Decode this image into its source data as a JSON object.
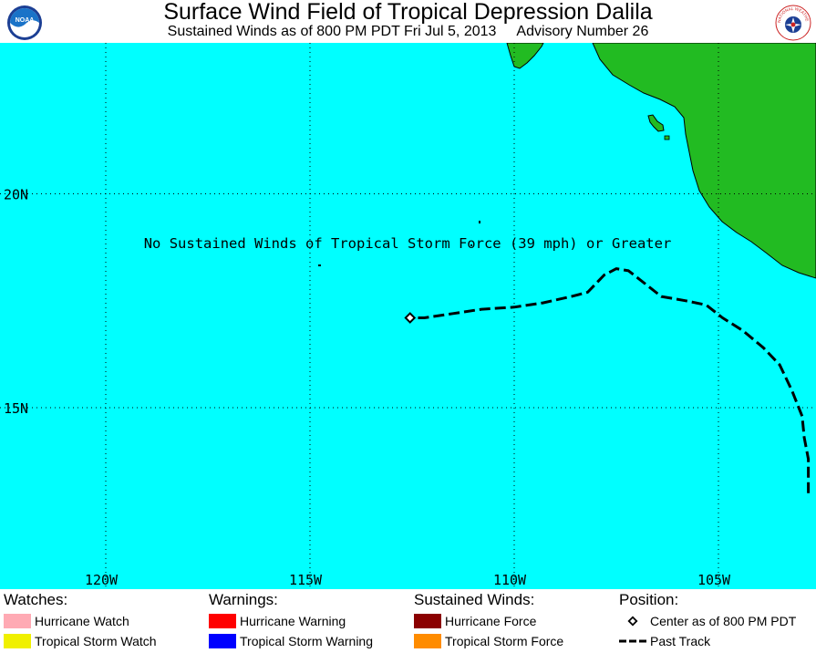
{
  "header": {
    "title": "Surface Wind Field of Tropical Depression Dalila",
    "subtitle_left": "Sustained Winds as of 800 PM PDT Fri Jul 5, 2013",
    "subtitle_right": "Advisory Number 26",
    "left_logo": "NOAA",
    "right_logo": "NATIONAL WEATHER SERVICE"
  },
  "map": {
    "ocean_color": "#00FFFF",
    "land_color": "#22BB22",
    "message": "No Sustained Winds of Tropical Storm Force (39 mph) or Greater",
    "lat_labels": [
      "20N",
      "15N"
    ],
    "lon_labels": [
      "120W",
      "115W",
      "110W",
      "105W"
    ],
    "lon_range": [
      -122.6,
      -102.6
    ],
    "lat_range": [
      11.2,
      24.2
    ],
    "graticule": {
      "lats": [
        20,
        15
      ],
      "lons": [
        -120,
        -115,
        -110,
        -105
      ]
    },
    "past_track": [
      [
        -102.8,
        13.0
      ],
      [
        -102.8,
        13.8
      ],
      [
        -102.9,
        14.3
      ],
      [
        -102.95,
        14.8
      ],
      [
        -103.2,
        15.4
      ],
      [
        -103.5,
        16.0
      ],
      [
        -103.9,
        16.4
      ],
      [
        -104.4,
        16.8
      ],
      [
        -104.9,
        17.1
      ],
      [
        -105.3,
        17.4
      ],
      [
        -105.8,
        17.5
      ],
      [
        -106.4,
        17.6
      ],
      [
        -106.8,
        17.9
      ],
      [
        -107.2,
        18.2
      ],
      [
        -107.5,
        18.25
      ],
      [
        -107.8,
        18.1
      ],
      [
        -108.2,
        17.7
      ],
      [
        -108.6,
        17.6
      ],
      [
        -109.3,
        17.45
      ],
      [
        -110.0,
        17.35
      ],
      [
        -110.8,
        17.3
      ],
      [
        -111.5,
        17.2
      ],
      [
        -112.2,
        17.1
      ],
      [
        -112.5,
        17.1
      ]
    ],
    "center": {
      "lon": -112.55,
      "lat": 17.1
    }
  },
  "legend": {
    "watches_title": "Watches:",
    "hurricane_watch": "Hurricane Watch",
    "hurricane_watch_color": "#FFAAB4",
    "tropical_storm_watch": "Tropical Storm Watch",
    "tropical_storm_watch_color": "#F0F000",
    "warnings_title": "Warnings:",
    "hurricane_warning": "Hurricane Warning",
    "hurricane_warning_color": "#FF0000",
    "tropical_storm_warning": "Tropical Storm Warning",
    "tropical_storm_warning_color": "#0000FF",
    "winds_title": "Sustained Winds:",
    "hurricane_force": "Hurricane Force",
    "hurricane_force_color": "#8B0000",
    "tropical_storm_force": "Tropical Storm Force",
    "tropical_storm_force_color": "#FF8C00",
    "position_title": "Position:",
    "center_label": "Center as of 800 PM PDT",
    "past_track_label": "Past Track"
  }
}
